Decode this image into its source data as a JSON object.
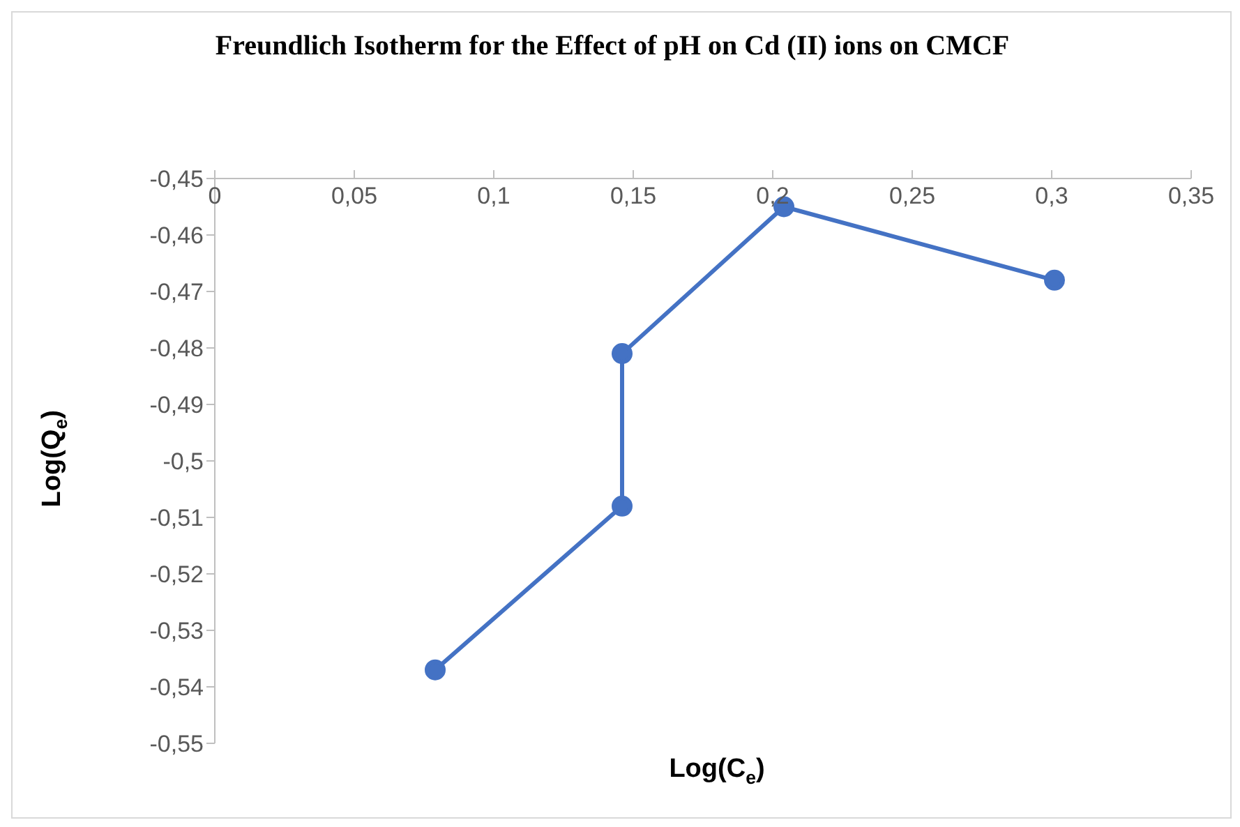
{
  "chart_data": {
    "type": "line",
    "title": "Freundlich Isotherm for the Effect of pH on Cd (II) ions on CMCF",
    "xlabel": "Log(C$_{e}$)",
    "ylabel": "Log(Q$_{e}$)",
    "x": [
      0.079,
      0.146,
      0.146,
      0.204,
      0.301
    ],
    "series": [
      {
        "color": "#4472c4",
        "values": [
          -0.537,
          -0.508,
          -0.481,
          -0.455,
          -0.468
        ]
      }
    ],
    "xlim": [
      0,
      0.35
    ],
    "xticks": [
      0,
      {
        "value": 0.05,
        "label": "0,05"
      },
      {
        "value": 0.1,
        "label": "0,1"
      },
      {
        "value": 0.15,
        "label": "0,15"
      },
      {
        "value": 0.2,
        "label": "0,2"
      },
      {
        "value": 0.25,
        "label": "0,25"
      },
      {
        "value": 0.3,
        "label": "0,3"
      },
      {
        "value": 0.35,
        "label": "0,35"
      }
    ],
    "ylim": [
      -0.55,
      -0.45
    ],
    "yticks": [
      {
        "value": -0.55,
        "label": "-0,55"
      },
      {
        "value": -0.54,
        "label": "-0,54"
      },
      {
        "value": -0.53,
        "label": "-0,53"
      },
      {
        "value": -0.52,
        "label": "-0,52"
      },
      {
        "value": -0.51,
        "label": "-0,51"
      },
      {
        "value": -0.5,
        "label": "-0,5"
      },
      {
        "value": -0.49,
        "label": "-0,49"
      },
      {
        "value": -0.48,
        "label": "-0,48"
      },
      {
        "value": -0.47,
        "label": "-0,47"
      },
      {
        "value": -0.46,
        "label": "-0,46"
      },
      {
        "value": -0.45,
        "label": "-0,45"
      }
    ],
    "marker": "circle",
    "line_style": "solid",
    "grid": false,
    "legend": false
  }
}
